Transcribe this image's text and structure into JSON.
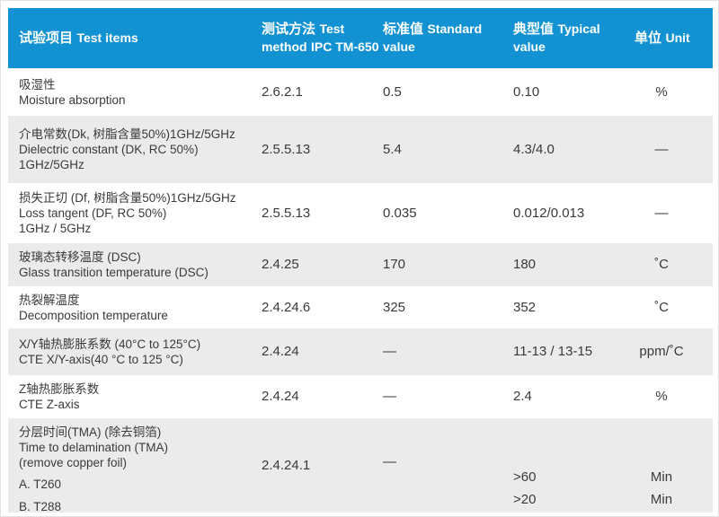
{
  "colors": {
    "header_bg": "#1292d2",
    "header_text": "#ffffff",
    "alt_row_bg": "#ebebeb",
    "body_text": "#3a3a3a"
  },
  "header": {
    "test_items_zh": "试验项目",
    "test_items_en": "Test items",
    "test_method_zh": "测试方法",
    "test_method_en": "Test method",
    "test_method_spec": "IPC TM-650",
    "standard_zh": "标准值",
    "standard_en": "Standard value",
    "typical_zh": "典型值",
    "typical_en": "Typical value",
    "unit_zh": "单位",
    "unit_en": "Unit"
  },
  "rows": [
    {
      "lines": [
        "吸湿性",
        "Moisture absorption"
      ],
      "method": "2.6.2.1",
      "standard": "0.5",
      "typical": "0.10",
      "unit": "%"
    },
    {
      "lines": [
        "介电常数(Dk, 树脂含量50%)1GHz/5GHz",
        "Dielectric constant (DK, RC 50%)",
        "1GHz/5GHz"
      ],
      "method": "2.5.5.13",
      "standard": "5.4",
      "typical": "4.3/4.0",
      "unit": "—"
    },
    {
      "lines": [
        "损失正切 (Df, 树脂含量50%)1GHz/5GHz",
        "Loss tangent (DF, RC 50%)",
        "1GHz / 5GHz"
      ],
      "method": "2.5.5.13",
      "standard": "0.035",
      "typical": "0.012/0.013",
      "unit": "—"
    },
    {
      "lines": [
        "玻璃态转移温度 (DSC)",
        "Glass transition temperature (DSC)"
      ],
      "method": "2.4.25",
      "standard": "170",
      "typical": "180",
      "unit": "˚C"
    },
    {
      "lines": [
        "热裂解温度",
        "Decomposition temperature"
      ],
      "method": "2.4.24.6",
      "standard": "325",
      "typical": "352",
      "unit": "˚C"
    },
    {
      "lines": [
        "X/Y轴热膨胀系数 (40°C to 125°C)",
        "CTE X/Y-axis(40 °C to 125 °C)"
      ],
      "method": "2.4.24",
      "standard": "—",
      "typical": "11-13 / 13-15",
      "unit": "ppm/˚C"
    },
    {
      "lines": [
        "Z轴热膨胀系数",
        "CTE Z-axis"
      ],
      "method": "2.4.24",
      "standard": "—",
      "typical": "2.4",
      "unit": "%"
    },
    {
      "lines": [
        "分层时间(TMA) (除去铜箔)",
        "Time to delamination (TMA)",
        "(remove copper foil)"
      ],
      "sub_items": [
        "A. T260",
        "B. T288"
      ],
      "method": "2.4.24.1",
      "standard": "—",
      "typical_values": [
        ">60",
        ">20"
      ],
      "unit_values": [
        "Min",
        "Min"
      ]
    }
  ]
}
